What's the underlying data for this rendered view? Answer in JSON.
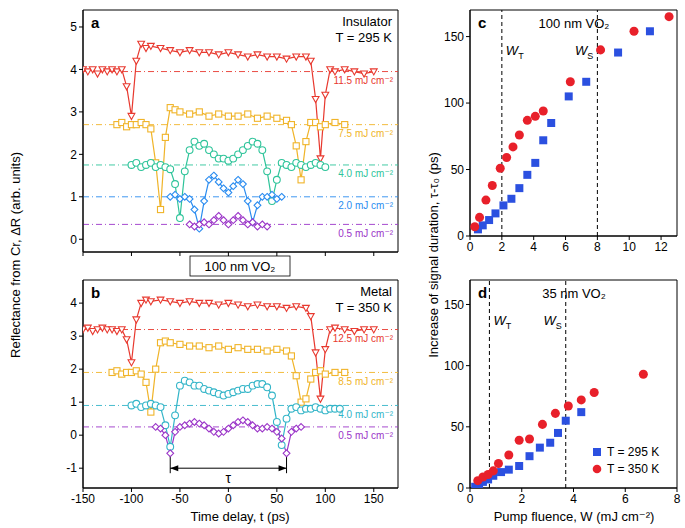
{
  "chart_data": [
    {
      "panel": "a",
      "type": "line",
      "ylabel": "Reflectance from Cr, ΔR (arb. units)",
      "annotations": [
        "Insulator",
        "T = 295 K"
      ],
      "grid": false,
      "tick_labels": "y",
      "xlim": [
        -150,
        175
      ],
      "xticks": [
        -150,
        -100,
        -50,
        0,
        50,
        100,
        150
      ],
      "ylim": [
        -0.3,
        5.4
      ],
      "yticks": [
        0,
        1,
        2,
        3,
        4,
        5
      ],
      "series": [
        {
          "name": "11.5 mJ cm⁻²",
          "color": "#e8392f",
          "marker": "triangle-down",
          "line_style": "solid",
          "baseline": 3.95,
          "x": [
            -150,
            -145,
            -140,
            -135,
            -130,
            -125,
            -120,
            -115,
            -110,
            -105,
            -100,
            -95,
            -90,
            -85,
            -80,
            -70,
            -60,
            -50,
            -40,
            -30,
            -20,
            -10,
            0,
            10,
            20,
            30,
            40,
            50,
            60,
            70,
            80,
            85,
            90,
            95,
            100,
            105,
            110,
            120,
            130,
            140,
            150
          ],
          "values": [
            4.0,
            3.95,
            4.0,
            3.9,
            4.0,
            3.95,
            4.0,
            3.95,
            4.0,
            3.6,
            2.9,
            4.2,
            4.6,
            4.5,
            4.55,
            4.5,
            4.45,
            4.4,
            4.45,
            4.4,
            4.4,
            4.35,
            4.4,
            4.35,
            4.3,
            4.35,
            4.3,
            4.3,
            4.25,
            4.3,
            4.3,
            4.2,
            3.3,
            1.9,
            3.4,
            4.0,
            3.95,
            4.0,
            3.95,
            3.9,
            3.95
          ]
        },
        {
          "name": "7.5 mJ cm⁻²",
          "color": "#f0b429",
          "marker": "square",
          "line_style": "solid",
          "baseline": 2.7,
          "x": [
            -115,
            -110,
            -105,
            -100,
            -95,
            -90,
            -85,
            -80,
            -75,
            -70,
            -65,
            -60,
            -55,
            -50,
            -40,
            -30,
            -20,
            -10,
            0,
            10,
            20,
            30,
            40,
            50,
            60,
            65,
            70,
            75,
            80,
            85,
            90,
            95,
            100,
            110,
            120
          ],
          "values": [
            2.7,
            2.75,
            2.65,
            2.7,
            2.7,
            2.75,
            2.7,
            2.6,
            1.8,
            0.7,
            2.4,
            3.1,
            3.05,
            3.0,
            2.95,
            3.0,
            2.9,
            2.95,
            2.9,
            2.9,
            2.95,
            2.85,
            2.9,
            2.85,
            2.8,
            2.7,
            2.2,
            1.4,
            2.3,
            2.75,
            2.75,
            2.65,
            2.7,
            2.75,
            2.7
          ]
        },
        {
          "name": "4.0 mJ cm⁻²",
          "color": "#2ec49a",
          "marker": "circle",
          "line_style": "solid",
          "baseline": 1.75,
          "x": [
            -100,
            -95,
            -90,
            -85,
            -80,
            -75,
            -70,
            -65,
            -60,
            -55,
            -50,
            -45,
            -40,
            -35,
            -30,
            -25,
            -20,
            -15,
            -10,
            -5,
            0,
            5,
            10,
            15,
            20,
            25,
            30,
            35,
            40,
            45,
            50,
            55,
            60,
            65,
            70,
            75,
            80,
            85,
            90,
            95,
            100
          ],
          "values": [
            1.75,
            1.8,
            1.7,
            1.75,
            1.8,
            1.7,
            1.75,
            1.7,
            1.65,
            1.3,
            0.5,
            1.6,
            2.1,
            2.3,
            2.2,
            2.25,
            2.1,
            2.0,
            1.9,
            1.9,
            1.85,
            1.9,
            2.0,
            2.1,
            2.2,
            2.3,
            2.25,
            2.1,
            1.6,
            0.9,
            1.4,
            1.8,
            1.75,
            1.7,
            1.8,
            1.75,
            1.7,
            1.75,
            1.8,
            1.75,
            1.7
          ]
        },
        {
          "name": "2.0 mJ cm⁻²",
          "color": "#2a8cf0",
          "marker": "diamond",
          "line_style": "solid",
          "baseline": 1.0,
          "x": [
            -60,
            -55,
            -50,
            -45,
            -40,
            -35,
            -30,
            -25,
            -20,
            -15,
            -10,
            -5,
            0,
            5,
            10,
            15,
            20,
            25,
            30,
            35,
            40,
            45,
            50,
            55
          ],
          "values": [
            1.0,
            1.05,
            0.95,
            1.0,
            0.95,
            0.7,
            0.25,
            0.9,
            1.4,
            1.5,
            1.35,
            1.2,
            1.1,
            1.25,
            1.4,
            1.3,
            0.9,
            0.4,
            0.8,
            1.0,
            1.0,
            1.05,
            0.95,
            1.0
          ]
        },
        {
          "name": "0.5 mJ cm⁻²",
          "color": "#9b35c8",
          "marker": "diamond",
          "line_style": "solid",
          "baseline": 0.35,
          "x": [
            -40,
            -35,
            -30,
            -25,
            -20,
            -15,
            -10,
            -5,
            0,
            5,
            10,
            15,
            20,
            25,
            30,
            35,
            40
          ],
          "values": [
            0.35,
            0.3,
            0.35,
            0.4,
            0.35,
            0.45,
            0.55,
            0.45,
            0.35,
            0.45,
            0.55,
            0.45,
            0.35,
            0.4,
            0.3,
            0.35,
            0.3
          ]
        }
      ]
    },
    {
      "panel": "b",
      "type": "line",
      "title": "100 nm VO₂",
      "xlabel": "Time delay, t (ps)",
      "annotations": [
        "Metal",
        "T = 350 K"
      ],
      "grid": false,
      "xlim": [
        -150,
        175
      ],
      "xticks": [
        -150,
        -100,
        -50,
        0,
        50,
        100,
        150
      ],
      "ylim": [
        -1.6,
        4.7
      ],
      "yticks": [
        -1,
        0,
        1,
        2,
        3,
        4
      ],
      "tau": {
        "label": "τ",
        "x": [
          -60,
          60
        ],
        "y": -1.0
      },
      "series": [
        {
          "name": "12.5 mJ cm⁻²",
          "color": "#e8392f",
          "marker": "triangle-down",
          "line_style": "solid",
          "baseline": 3.2,
          "x": [
            -150,
            -145,
            -140,
            -135,
            -130,
            -125,
            -120,
            -115,
            -110,
            -105,
            -100,
            -95,
            -90,
            -85,
            -80,
            -70,
            -60,
            -50,
            -40,
            -30,
            -20,
            -10,
            0,
            10,
            20,
            30,
            40,
            50,
            60,
            70,
            80,
            85,
            90,
            95,
            100,
            105,
            110,
            120,
            130,
            140,
            150
          ],
          "values": [
            3.2,
            3.25,
            3.15,
            3.2,
            3.25,
            3.2,
            3.2,
            3.15,
            3.2,
            2.9,
            2.2,
            3.5,
            4.0,
            4.1,
            4.05,
            4.1,
            4.05,
            4.0,
            4.05,
            4.0,
            4.0,
            3.95,
            4.0,
            3.95,
            3.9,
            3.95,
            3.9,
            3.9,
            3.85,
            3.9,
            3.85,
            3.6,
            2.5,
            1.1,
            2.6,
            3.2,
            3.25,
            3.2,
            3.15,
            3.2,
            3.2
          ]
        },
        {
          "name": "8.5 mJ cm⁻²",
          "color": "#f0b429",
          "marker": "square",
          "line_style": "solid",
          "baseline": 1.9,
          "x": [
            -120,
            -115,
            -110,
            -105,
            -100,
            -95,
            -90,
            -85,
            -80,
            -75,
            -70,
            -65,
            -60,
            -50,
            -40,
            -30,
            -20,
            -10,
            0,
            10,
            20,
            30,
            40,
            50,
            60,
            65,
            70,
            75,
            80,
            85,
            90,
            95,
            100,
            110,
            120
          ],
          "values": [
            1.9,
            1.95,
            1.85,
            1.9,
            1.9,
            1.95,
            1.85,
            1.6,
            0.7,
            2.0,
            2.8,
            2.85,
            2.8,
            2.75,
            2.7,
            2.7,
            2.65,
            2.7,
            2.6,
            2.65,
            2.6,
            2.6,
            2.55,
            2.6,
            2.55,
            2.4,
            1.8,
            1.0,
            1.1,
            1.7,
            1.9,
            1.95,
            1.85,
            1.9,
            1.9
          ]
        },
        {
          "name": "4.0 mJ cm⁻²",
          "color": "#33b5c8",
          "marker": "circle",
          "line_style": "solid",
          "baseline": 0.9,
          "x": [
            -100,
            -95,
            -90,
            -85,
            -80,
            -75,
            -70,
            -65,
            -60,
            -55,
            -50,
            -45,
            -40,
            -35,
            -30,
            -25,
            -20,
            -15,
            -10,
            -5,
            0,
            5,
            10,
            15,
            20,
            25,
            30,
            35,
            40,
            45,
            50,
            55,
            60,
            65,
            70,
            75,
            80,
            85,
            90,
            95,
            100,
            105,
            110,
            115
          ],
          "values": [
            0.9,
            0.95,
            0.85,
            0.9,
            0.95,
            0.9,
            0.85,
            0.3,
            -0.35,
            0.6,
            1.5,
            1.65,
            1.6,
            1.5,
            1.5,
            1.4,
            1.35,
            1.3,
            1.25,
            1.2,
            1.25,
            1.3,
            1.35,
            1.4,
            1.4,
            1.5,
            1.55,
            1.55,
            1.45,
            1.2,
            0.4,
            -0.3,
            0.5,
            0.8,
            0.85,
            0.75,
            0.8,
            0.8,
            0.85,
            0.8,
            0.75,
            0.8,
            0.8,
            0.8
          ]
        },
        {
          "name": "0.5 mJ cm⁻²",
          "color": "#9b35c8",
          "marker": "diamond",
          "line_style": "solid",
          "baseline": 0.25,
          "x": [
            -75,
            -70,
            -65,
            -60,
            -55,
            -50,
            -45,
            -40,
            -35,
            -30,
            -25,
            -20,
            -15,
            -10,
            -5,
            0,
            5,
            10,
            15,
            20,
            25,
            30,
            35,
            40,
            45,
            50,
            55,
            60,
            65,
            70,
            75
          ],
          "values": [
            0.25,
            0.2,
            0.0,
            -0.55,
            0.1,
            0.25,
            0.3,
            0.35,
            0.4,
            0.35,
            0.3,
            0.2,
            0.1,
            0.05,
            0.1,
            0.2,
            0.3,
            0.4,
            0.45,
            0.4,
            0.3,
            0.2,
            0.2,
            0.25,
            0.2,
            0.1,
            -0.1,
            -0.55,
            0.1,
            0.2,
            0.25
          ]
        }
      ]
    },
    {
      "panel": "c",
      "type": "scatter",
      "title": "100 nm VO₂",
      "ylabel": "Increase of signal duration, τ-τ₀ (ps)",
      "grid": false,
      "xlim": [
        0,
        13
      ],
      "xticks": [
        0,
        2,
        4,
        6,
        8,
        10,
        12
      ],
      "ylim": [
        0,
        170
      ],
      "yticks": [
        0,
        50,
        100,
        150
      ],
      "thresholds": [
        {
          "value": 2,
          "label": "W",
          "sub": "T"
        },
        {
          "value": 8,
          "label": "W",
          "sub": "S"
        }
      ],
      "series": [
        {
          "name": "T = 295 K",
          "color": "#2b50e0",
          "marker": "square",
          "x": [
            0.5,
            0.8,
            1.2,
            1.6,
            2.1,
            2.6,
            3.1,
            3.6,
            4.1,
            4.6,
            5.1,
            6.2,
            7.3,
            9.3,
            11.3
          ],
          "values": [
            5,
            8,
            12,
            17,
            23,
            28,
            36,
            46,
            55,
            72,
            85,
            105,
            116,
            138,
            154
          ]
        },
        {
          "name": "T = 350 K",
          "color": "#e8202a",
          "marker": "circle",
          "x": [
            0.3,
            0.6,
            1.0,
            1.4,
            1.9,
            2.3,
            2.7,
            3.1,
            3.6,
            4.1,
            4.6,
            6.3,
            8.2,
            10.3,
            12.5
          ],
          "values": [
            7,
            14,
            27,
            38,
            51,
            59,
            67,
            76,
            87,
            90,
            94,
            116,
            140,
            154,
            165
          ]
        }
      ]
    },
    {
      "panel": "d",
      "type": "scatter",
      "title": "35 nm VO₂",
      "xlabel": "Pump fluence, W (mJ cm⁻²)",
      "grid": false,
      "legend": "lower right",
      "xlim": [
        0,
        8
      ],
      "xticks": [
        0,
        2,
        4,
        6,
        8
      ],
      "ylim": [
        0,
        170
      ],
      "yticks": [
        0,
        50,
        100,
        150
      ],
      "thresholds": [
        {
          "value": 0.75,
          "label": "W",
          "sub": "T"
        },
        {
          "value": 3.7,
          "label": "W",
          "sub": "S"
        }
      ],
      "series": [
        {
          "name": "T = 295 K",
          "color": "#2b50e0",
          "marker": "square",
          "x": [
            0.2,
            0.35,
            0.5,
            0.7,
            0.9,
            1.2,
            1.5,
            1.9,
            2.3,
            2.7,
            3.1,
            3.4,
            3.7,
            4.3
          ],
          "values": [
            1,
            3,
            5,
            7,
            10,
            13,
            15,
            18,
            26,
            33,
            37,
            45,
            55,
            62
          ]
        },
        {
          "name": "T = 350 K",
          "color": "#e8202a",
          "marker": "circle",
          "x": [
            0.3,
            0.5,
            0.7,
            0.9,
            1.1,
            1.5,
            1.9,
            2.3,
            2.8,
            3.3,
            3.8,
            4.3,
            4.8,
            6.7
          ],
          "values": [
            6,
            9,
            11,
            14,
            20,
            27,
            39,
            40,
            52,
            61,
            67,
            72,
            78,
            93
          ]
        }
      ]
    }
  ]
}
